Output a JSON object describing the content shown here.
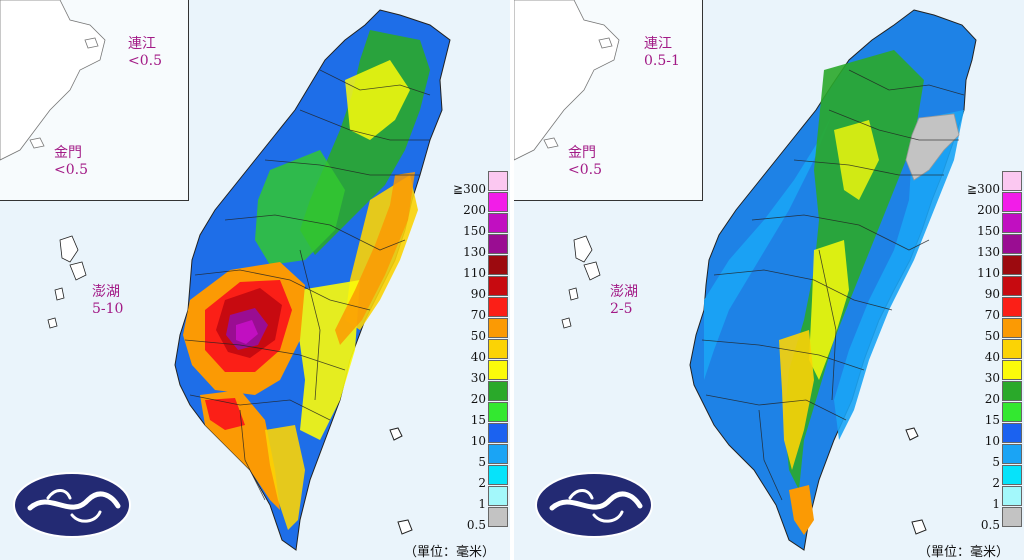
{
  "panels": [
    {
      "id": "left",
      "labels": {
        "matsu": {
          "name": "連江",
          "value": "<0.5"
        },
        "kinmen": {
          "name": "金門",
          "value": "<0.5"
        },
        "penghu": {
          "name": "澎湖",
          "value": "5-10"
        }
      }
    },
    {
      "id": "right",
      "labels": {
        "matsu": {
          "name": "連江",
          "value": "0.5-1"
        },
        "kinmen": {
          "name": "金門",
          "value": "<0.5"
        },
        "penghu": {
          "name": "澎湖",
          "value": "2-5"
        }
      }
    }
  ],
  "legend": {
    "items": [
      {
        "label": "≧300",
        "color": "#fbc8f1"
      },
      {
        "label": "200",
        "color": "#f21de8"
      },
      {
        "label": "150",
        "color": "#c10fc1"
      },
      {
        "label": "130",
        "color": "#9a0d92"
      },
      {
        "label": "110",
        "color": "#9c0a0f"
      },
      {
        "label": "90",
        "color": "#c70a10"
      },
      {
        "label": "70",
        "color": "#fb1f17"
      },
      {
        "label": "50",
        "color": "#fb9a04"
      },
      {
        "label": "40",
        "color": "#fbd305"
      },
      {
        "label": "30",
        "color": "#fbfb0a"
      },
      {
        "label": "20",
        "color": "#2aa92a"
      },
      {
        "label": "15",
        "color": "#33e830"
      },
      {
        "label": "10",
        "color": "#1b62f0"
      },
      {
        "label": "5",
        "color": "#1aa4f5"
      },
      {
        "label": "2",
        "color": "#06e3fa"
      },
      {
        "label": "1",
        "color": "#a3f8fb"
      },
      {
        "label": "0.5",
        "color": "#c3c3c3"
      }
    ],
    "unit": "（單位：毫米）"
  },
  "logo": {
    "name": "cwa-cloud-logo"
  }
}
